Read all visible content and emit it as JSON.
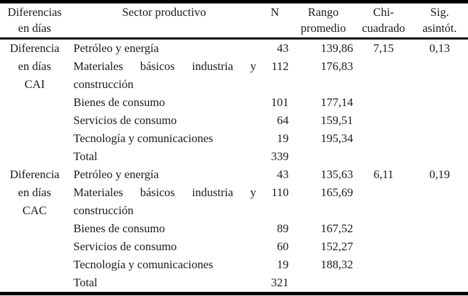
{
  "table": {
    "colors": {
      "text": "#1a1a1a",
      "rule": "#000000",
      "background": "#ffffff"
    },
    "header": {
      "columns": [
        {
          "lines": [
            "Diferencias",
            "en días"
          ]
        },
        {
          "lines": [
            "Sector productivo"
          ]
        },
        {
          "lines": [
            "N"
          ]
        },
        {
          "lines": [
            "Rango",
            "promedio"
          ]
        },
        {
          "lines": [
            "Chi-",
            "cuadrado"
          ]
        },
        {
          "lines": [
            "Sig.",
            "asintót."
          ]
        }
      ]
    },
    "groups": [
      {
        "label_lines": [
          "Diferencia",
          "en días",
          "CAI"
        ],
        "rows": [
          {
            "sector": "Petróleo y energía",
            "n": "43",
            "rango_promedio": "139,86",
            "chi_cuadrado": "7,15",
            "sig_asintot": "0,13"
          },
          {
            "sector": "Materiales básicos industria y construcción",
            "n": "112",
            "rango_promedio": "176,83",
            "chi_cuadrado": "",
            "sig_asintot": ""
          },
          {
            "sector": "Bienes de consumo",
            "n": "101",
            "rango_promedio": "177,14",
            "chi_cuadrado": "",
            "sig_asintot": ""
          },
          {
            "sector": "Servicios de consumo",
            "n": "64",
            "rango_promedio": "159,51",
            "chi_cuadrado": "",
            "sig_asintot": ""
          },
          {
            "sector": "Tecnología y comunicaciones",
            "n": "19",
            "rango_promedio": "195,34",
            "chi_cuadrado": "",
            "sig_asintot": ""
          },
          {
            "sector": "Total",
            "n": "339",
            "rango_promedio": "",
            "chi_cuadrado": "",
            "sig_asintot": ""
          }
        ]
      },
      {
        "label_lines": [
          "Diferencia",
          "en días",
          "CAC"
        ],
        "rows": [
          {
            "sector": "Petróleo y energía",
            "n": "43",
            "rango_promedio": "135,63",
            "chi_cuadrado": "6,11",
            "sig_asintot": "0,19"
          },
          {
            "sector": "Materiales básicos industria y construcción",
            "n": "110",
            "rango_promedio": "165,69",
            "chi_cuadrado": "",
            "sig_asintot": ""
          },
          {
            "sector": "Bienes de consumo",
            "n": "89",
            "rango_promedio": "167,52",
            "chi_cuadrado": "",
            "sig_asintot": ""
          },
          {
            "sector": "Servicios de consumo",
            "n": "60",
            "rango_promedio": "152,27",
            "chi_cuadrado": "",
            "sig_asintot": ""
          },
          {
            "sector": "Tecnología y comunicaciones",
            "n": "19",
            "rango_promedio": "188,32",
            "chi_cuadrado": "",
            "sig_asintot": ""
          },
          {
            "sector": "Total",
            "n": "321",
            "rango_promedio": "",
            "chi_cuadrado": "",
            "sig_asintot": ""
          }
        ]
      }
    ]
  }
}
